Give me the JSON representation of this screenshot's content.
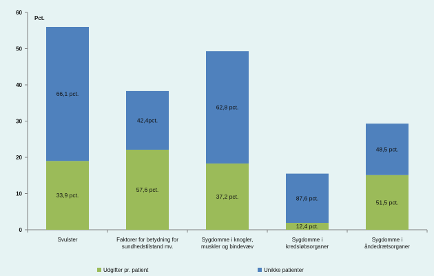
{
  "chart_data": {
    "type": "bar",
    "stacked": true,
    "ylabel": "Pct.",
    "ylim": [
      0,
      60
    ],
    "yticks": [
      0,
      10,
      20,
      30,
      40,
      50,
      60
    ],
    "grid": false,
    "legend_position": "bottom",
    "categories": [
      [
        "Svulster"
      ],
      [
        "Faktorer for betydning for",
        "sundhedstilstand mv."
      ],
      [
        "Sygdomme i knogler,",
        "muskler og bindevæv"
      ],
      [
        "Sygdomme i",
        "kredsløbsorganer"
      ],
      [
        "Sygdomme i",
        "åndedrætsorganer"
      ]
    ],
    "series": [
      {
        "name": "Udgifter pr. patient",
        "color": "#9bbb59",
        "values": [
          19.0,
          22.1,
          18.3,
          1.9,
          15.1
        ],
        "labels": [
          "33,9 pct.",
          "57,6 pct.",
          "37,2 pct.",
          "12,4 pct.",
          "51,5 pct."
        ]
      },
      {
        "name": "Unikke patienter",
        "color": "#4f81bd",
        "values": [
          37.0,
          16.2,
          31.0,
          13.6,
          14.2
        ],
        "labels": [
          "66,1 pct.",
          "42,4pct.",
          "62,8 pct.",
          "87,6 pct.",
          "48,5 pct."
        ]
      }
    ]
  }
}
